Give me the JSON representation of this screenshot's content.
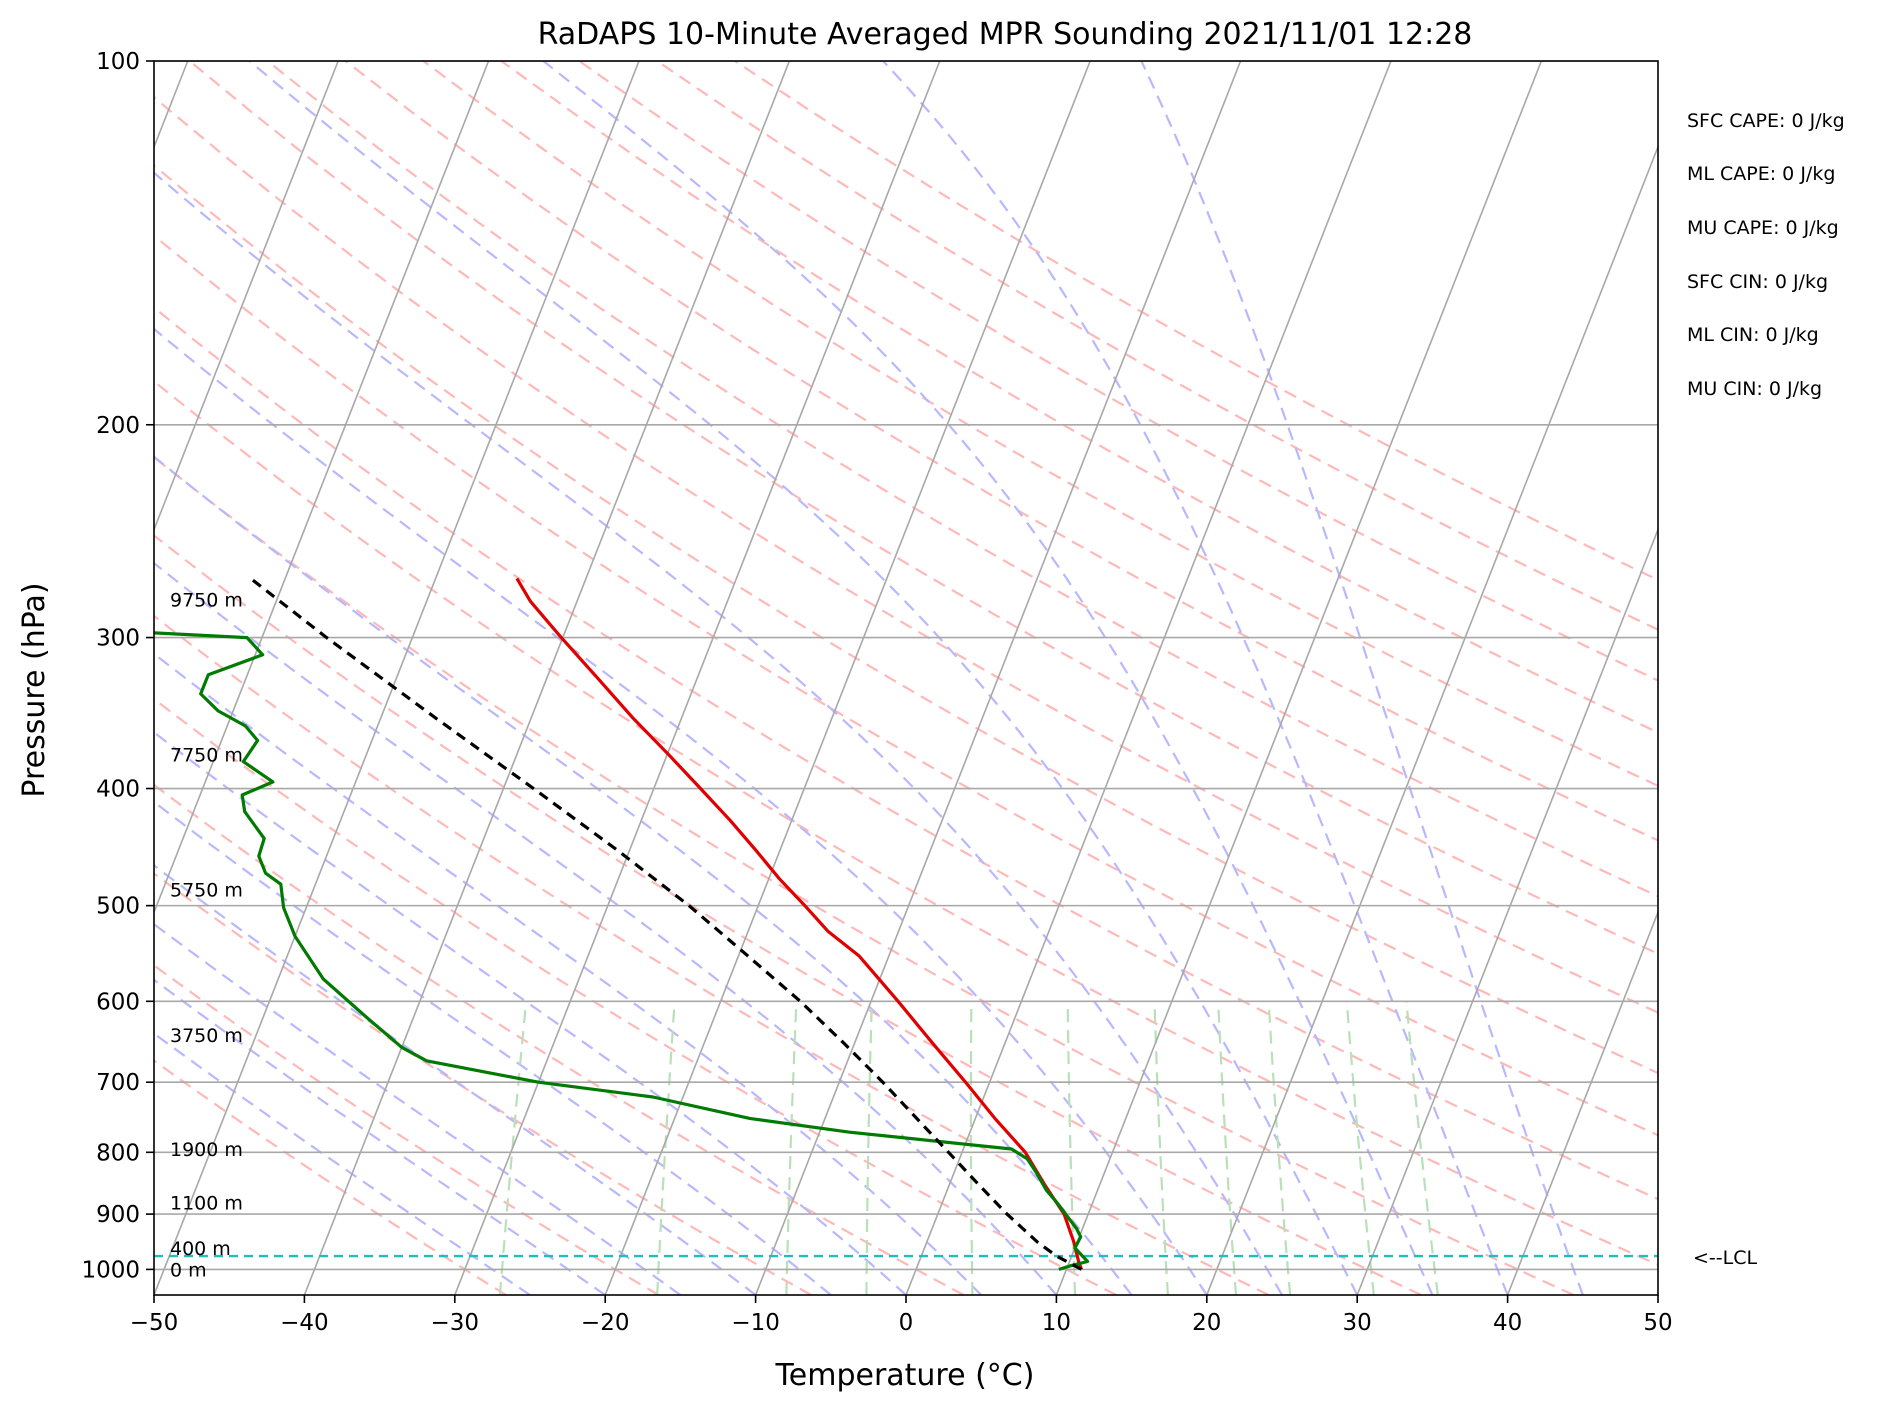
{
  "chart_data": {
    "type": "skew-t",
    "title": "RaDAPS 10-Minute Averaged MPR Sounding 2021/11/01 12:28",
    "xlabel": "Temperature (°C)",
    "ylabel": "Pressure (hPa)",
    "xlim": [
      -50,
      50
    ],
    "ylim": [
      1050,
      100
    ],
    "y_scale": "log",
    "x_ticks": [
      -50,
      -40,
      -30,
      -20,
      -10,
      0,
      10,
      20,
      30,
      40,
      50
    ],
    "x_tick_labels": [
      "−50",
      "−40",
      "−30",
      "−20",
      "−10",
      "0",
      "10",
      "20",
      "30",
      "40",
      "50"
    ],
    "y_ticks": [
      100,
      200,
      300,
      400,
      500,
      600,
      700,
      800,
      900,
      1000
    ],
    "y_tick_labels": [
      "100",
      "200",
      "300",
      "400",
      "500",
      "600",
      "700",
      "800",
      "900",
      "1000"
    ],
    "grid": true,
    "height_labels": [
      {
        "pressure": 1000,
        "text": "0 m"
      },
      {
        "pressure": 960,
        "text": "400 m"
      },
      {
        "pressure": 880,
        "text": "1100 m"
      },
      {
        "pressure": 795,
        "text": "1900 m"
      },
      {
        "pressure": 640,
        "text": "3750 m"
      },
      {
        "pressure": 485,
        "text": "5750 m"
      },
      {
        "pressure": 375,
        "text": "7750 m"
      },
      {
        "pressure": 279,
        "text": "9750 m"
      }
    ],
    "series": [
      {
        "key": "temperature",
        "color": "#e00000",
        "style": "solid",
        "points": [
          {
            "p": 1000,
            "t": 11.0
          },
          {
            "p": 985,
            "t": 10.6
          },
          {
            "p": 950,
            "t": 9.8
          },
          {
            "p": 900,
            "t": 8.4
          },
          {
            "p": 850,
            "t": 6.3
          },
          {
            "p": 800,
            "t": 4.2
          },
          {
            "p": 750,
            "t": 1.3
          },
          {
            "p": 700,
            "t": -1.6
          },
          {
            "p": 650,
            "t": -4.8
          },
          {
            "p": 600,
            "t": -8.2
          },
          {
            "p": 550,
            "t": -12.0
          },
          {
            "p": 525,
            "t": -14.7
          },
          {
            "p": 500,
            "t": -16.9
          },
          {
            "p": 475,
            "t": -19.3
          },
          {
            "p": 450,
            "t": -21.6
          },
          {
            "p": 425,
            "t": -24.1
          },
          {
            "p": 400,
            "t": -26.9
          },
          {
            "p": 375,
            "t": -29.9
          },
          {
            "p": 350,
            "t": -33.2
          },
          {
            "p": 325,
            "t": -36.5
          },
          {
            "p": 300,
            "t": -40.1
          },
          {
            "p": 280,
            "t": -43.1
          },
          {
            "p": 268,
            "t": -44.6
          }
        ]
      },
      {
        "key": "dewpoint",
        "color": "#007a00",
        "style": "solid",
        "points": [
          {
            "p": 1000,
            "t": 9.5
          },
          {
            "p": 992,
            "t": 10.3
          },
          {
            "p": 985,
            "t": 11.2
          },
          {
            "p": 960,
            "t": 10.0
          },
          {
            "p": 940,
            "t": 10.1
          },
          {
            "p": 925,
            "t": 9.6
          },
          {
            "p": 900,
            "t": 8.5
          },
          {
            "p": 880,
            "t": 7.6
          },
          {
            "p": 860,
            "t": 6.6
          },
          {
            "p": 830,
            "t": 5.4
          },
          {
            "p": 810,
            "t": 4.5
          },
          {
            "p": 795,
            "t": 3.2
          },
          {
            "p": 770,
            "t": -8.0
          },
          {
            "p": 750,
            "t": -15.0
          },
          {
            "p": 720,
            "t": -22.0
          },
          {
            "p": 700,
            "t": -30.0
          },
          {
            "p": 672,
            "t": -38.0
          },
          {
            "p": 655,
            "t": -40.0
          },
          {
            "p": 620,
            "t": -43.0
          },
          {
            "p": 575,
            "t": -47.0
          },
          {
            "p": 530,
            "t": -50.0
          },
          {
            "p": 502,
            "t": -51.5
          },
          {
            "p": 480,
            "t": -52.3
          },
          {
            "p": 470,
            "t": -53.6
          },
          {
            "p": 455,
            "t": -54.5
          },
          {
            "p": 440,
            "t": -54.6
          },
          {
            "p": 418,
            "t": -56.6
          },
          {
            "p": 405,
            "t": -57.2
          },
          {
            "p": 395,
            "t": -55.5
          },
          {
            "p": 380,
            "t": -58.0
          },
          {
            "p": 365,
            "t": -57.6
          },
          {
            "p": 355,
            "t": -58.8
          },
          {
            "p": 345,
            "t": -61.0
          },
          {
            "p": 334,
            "t": -62.6
          },
          {
            "p": 322,
            "t": -62.6
          },
          {
            "p": 310,
            "t": -59.5
          },
          {
            "p": 300,
            "t": -61.0
          },
          {
            "p": 292,
            "t": -80.0
          }
        ]
      },
      {
        "key": "parcel",
        "color": "#000000",
        "style": "dashed",
        "points": [
          {
            "p": 1000,
            "t": 11.0
          },
          {
            "p": 975,
            "t": 9.0
          },
          {
            "p": 950,
            "t": 7.4
          },
          {
            "p": 900,
            "t": 4.6
          },
          {
            "p": 850,
            "t": 1.9
          },
          {
            "p": 800,
            "t": -0.9
          },
          {
            "p": 750,
            "t": -3.9
          },
          {
            "p": 700,
            "t": -7.1
          },
          {
            "p": 650,
            "t": -10.7
          },
          {
            "p": 600,
            "t": -14.7
          },
          {
            "p": 550,
            "t": -19.4
          },
          {
            "p": 500,
            "t": -24.6
          },
          {
            "p": 450,
            "t": -30.8
          },
          {
            "p": 400,
            "t": -38.0
          },
          {
            "p": 350,
            "t": -46.3
          },
          {
            "p": 300,
            "t": -55.7
          },
          {
            "p": 268,
            "t": -62.3
          }
        ]
      }
    ],
    "lcl": {
      "pressure": 975,
      "label": "<--LCL",
      "color": "#19c0c0"
    },
    "background_lines": {
      "isotherm_color": "#a8a8a8",
      "dry_adiabat_color": "#ffb8b8",
      "moist_adiabat_color": "#b8b8ff",
      "mixing_ratio_color": "#b9e0b9"
    },
    "indices": [
      "SFC CAPE: 0 J/kg",
      "ML CAPE: 0 J/kg",
      "MU CAPE: 0 J/kg",
      "SFC CIN: 0 J/kg",
      "ML CIN: 0 J/kg",
      "MU CIN: 0 J/kg"
    ]
  }
}
